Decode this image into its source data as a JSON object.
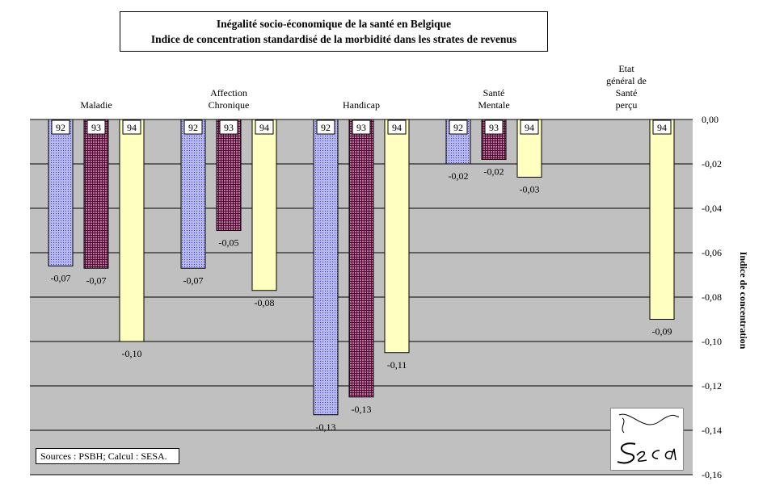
{
  "chart_data": {
    "type": "bar",
    "title": "Inégalité socio-économique de la santé en Belgique",
    "subtitle": "Indice de concentration standardisé de la morbidité dans  les strates de revenus",
    "ylabel": "Indice de concentration",
    "ylim": [
      -0.16,
      0.0
    ],
    "yticks": [
      0.0,
      -0.02,
      -0.04,
      -0.06,
      -0.08,
      -0.1,
      -0.12,
      -0.14,
      -0.16
    ],
    "ytick_labels": [
      "0,00",
      "-0,02",
      "-0,04",
      "-0,06",
      "-0,08",
      "-0,10",
      "-0,12",
      "-0,14",
      "-0,16"
    ],
    "grid": true,
    "legend": "none",
    "categories": [
      {
        "lines": [
          "Maladie"
        ]
      },
      {
        "lines": [
          "Affection",
          "Chronique"
        ]
      },
      {
        "lines": [
          "Handicap"
        ]
      },
      {
        "lines": [
          "Santé",
          "Mentale"
        ]
      },
      {
        "lines": [
          "Etat",
          "général de",
          "Santé",
          "perçu"
        ]
      }
    ],
    "series": [
      {
        "label": "92",
        "color": "#8080d0",
        "pattern": "dots",
        "values": [
          -0.066,
          -0.067,
          -0.133,
          -0.02,
          null
        ],
        "value_labels": [
          "-0,07",
          "-0,07",
          "-0,13",
          "-0,02",
          null
        ]
      },
      {
        "label": "93",
        "color": "#7a2a55",
        "pattern": "grid",
        "values": [
          -0.067,
          -0.05,
          -0.125,
          -0.018,
          null
        ],
        "value_labels": [
          "-0,07",
          "-0,05",
          "-0,13",
          "-0,02",
          null
        ]
      },
      {
        "label": "94",
        "color": "#ffffc0",
        "pattern": "solid",
        "values": [
          -0.1,
          -0.077,
          -0.105,
          -0.026,
          -0.09
        ],
        "value_labels": [
          "-0,10",
          "-0,08",
          "-0,11",
          "-0,03",
          "-0,09"
        ]
      }
    ]
  },
  "source": "Sources : PSBH; Calcul :  SESA.",
  "logo_text": "SESA"
}
